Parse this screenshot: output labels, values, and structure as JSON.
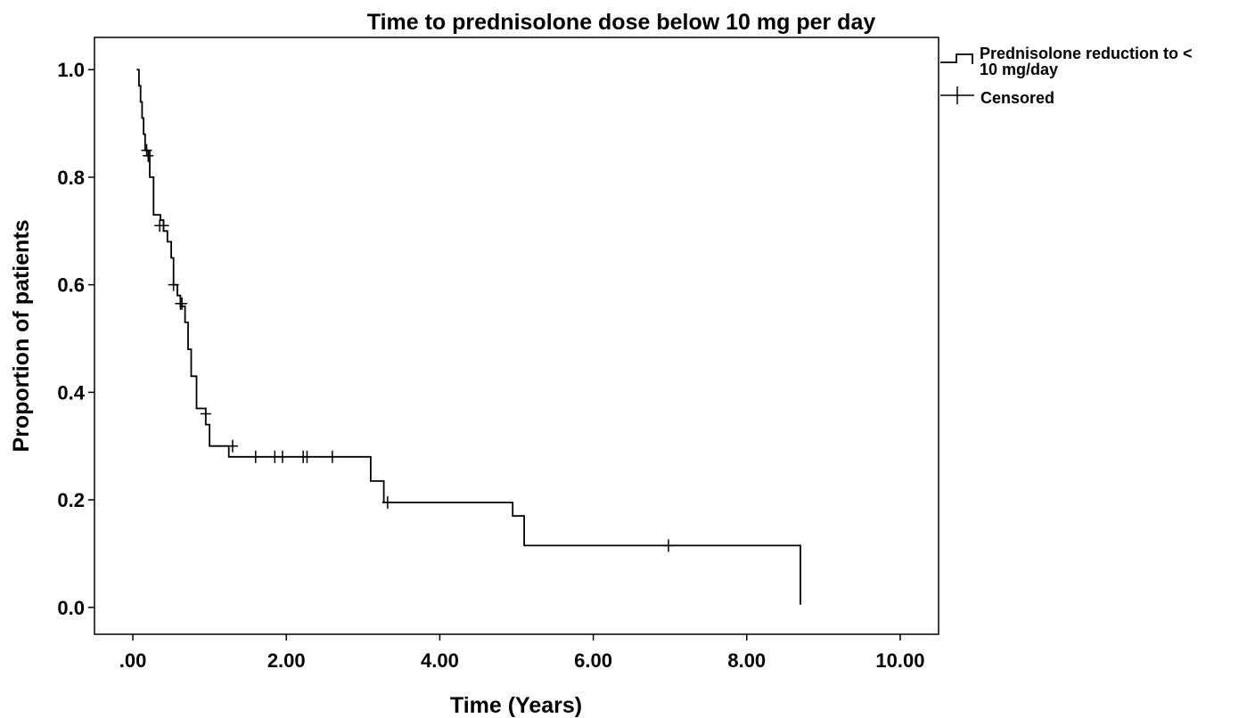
{
  "chart_data": {
    "type": "line",
    "title": "Time to prednisolone dose below 10 mg per day",
    "xlabel": "Time (Years)",
    "ylabel": "Proportion of patients",
    "xlim": [
      -0.5,
      10.5
    ],
    "ylim": [
      -0.05,
      1.06
    ],
    "x_ticks": [
      ".00",
      "2.00",
      "4.00",
      "6.00",
      "8.00",
      "10.00"
    ],
    "x_tick_values": [
      0,
      2,
      4,
      6,
      8,
      10
    ],
    "y_ticks": [
      "0.0",
      "0.2",
      "0.4",
      "0.6",
      "0.8",
      "1.0"
    ],
    "y_tick_values": [
      0,
      0.2,
      0.4,
      0.6,
      0.8,
      1.0
    ],
    "grid": false,
    "legend_position": "outside-top-right",
    "legend": [
      "Prednisolone reduction to < 10 mg/day",
      "Censored"
    ],
    "series": [
      {
        "name": "Prednisolone reduction to < 10 mg/day",
        "steps": [
          [
            0.05,
            1.0
          ],
          [
            0.08,
            0.97
          ],
          [
            0.1,
            0.94
          ],
          [
            0.12,
            0.91
          ],
          [
            0.14,
            0.88
          ],
          [
            0.16,
            0.85
          ],
          [
            0.22,
            0.8
          ],
          [
            0.27,
            0.73
          ],
          [
            0.36,
            0.72
          ],
          [
            0.4,
            0.7
          ],
          [
            0.45,
            0.68
          ],
          [
            0.5,
            0.65
          ],
          [
            0.53,
            0.6
          ],
          [
            0.58,
            0.58
          ],
          [
            0.62,
            0.56
          ],
          [
            0.68,
            0.53
          ],
          [
            0.72,
            0.48
          ],
          [
            0.76,
            0.43
          ],
          [
            0.83,
            0.37
          ],
          [
            0.95,
            0.34
          ],
          [
            1.0,
            0.3
          ],
          [
            1.25,
            0.28
          ],
          [
            3.1,
            0.235
          ],
          [
            3.27,
            0.195
          ],
          [
            4.95,
            0.17
          ],
          [
            5.1,
            0.115
          ],
          [
            8.7,
            0.005
          ]
        ],
        "end_x": 8.7
      }
    ],
    "censored": [
      [
        0.18,
        0.85
      ],
      [
        0.2,
        0.84
      ],
      [
        0.35,
        0.71
      ],
      [
        0.4,
        0.71
      ],
      [
        0.53,
        0.6
      ],
      [
        0.62,
        0.565
      ],
      [
        0.64,
        0.565
      ],
      [
        0.95,
        0.36
      ],
      [
        1.3,
        0.3
      ],
      [
        1.6,
        0.28
      ],
      [
        1.85,
        0.28
      ],
      [
        1.95,
        0.28
      ],
      [
        2.22,
        0.28
      ],
      [
        2.27,
        0.28
      ],
      [
        2.6,
        0.28
      ],
      [
        3.32,
        0.195
      ],
      [
        6.98,
        0.115
      ]
    ]
  }
}
